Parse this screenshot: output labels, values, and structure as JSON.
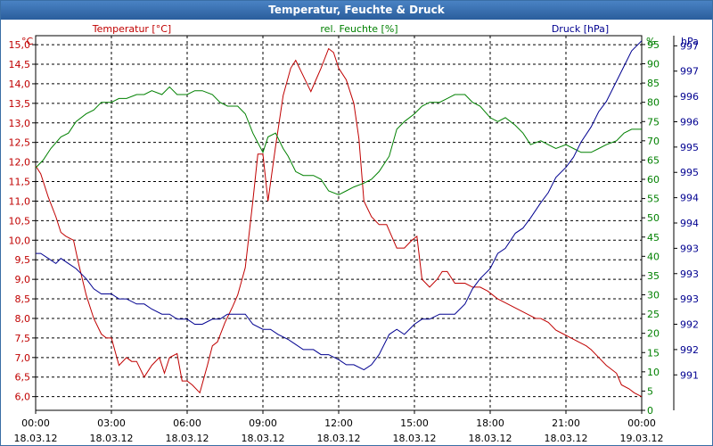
{
  "window": {
    "title": "Temperatur, Feuchte & Druck"
  },
  "chart_data": {
    "type": "line",
    "title": "Temperatur, Feuchte & Druck",
    "grid": true,
    "x_ticks": [
      {
        "time": "00:00",
        "date": "18.03.12"
      },
      {
        "time": "03:00",
        "date": "18.03.12"
      },
      {
        "time": "06:00",
        "date": "18.03.12"
      },
      {
        "time": "09:00",
        "date": "18.03.12"
      },
      {
        "time": "12:00",
        "date": "18.03.12"
      },
      {
        "time": "15:00",
        "date": "18.03.12"
      },
      {
        "time": "18:00",
        "date": "18.03.12"
      },
      {
        "time": "21:00",
        "date": "18.03.12"
      },
      {
        "time": "00:00",
        "date": "19.03.12"
      }
    ],
    "x_range_hours": [
      0,
      24
    ],
    "axes": {
      "temperature": {
        "label": "Temperatur [°C]",
        "unit": "°C",
        "color": "#c00000",
        "ylim": [
          5.65,
          15.23
        ],
        "ticks": [
          "6,0",
          "6,5",
          "7,0",
          "7,5",
          "8,0",
          "8,5",
          "9,0",
          "9,5",
          "10,0",
          "10,5",
          "11,0",
          "11,5",
          "12,0",
          "12,5",
          "13,0",
          "13,5",
          "14,0",
          "14,5",
          "15,0"
        ]
      },
      "humidity": {
        "label": "rel. Feuchte [%]",
        "unit": "%",
        "color": "#008000",
        "ylim": [
          0,
          97.3
        ],
        "ticks": [
          "0",
          "5",
          "10",
          "15",
          "20",
          "25",
          "30",
          "35",
          "40",
          "45",
          "50",
          "55",
          "60",
          "65",
          "70",
          "75",
          "80",
          "85",
          "90",
          "95"
        ]
      },
      "pressure": {
        "label": "Druck [hPa]",
        "unit": "hPa",
        "color": "#000090",
        "ylim": [
          990.3,
          997.7
        ],
        "ticks": [
          "991",
          "992",
          "992",
          "993",
          "993",
          "993",
          "994",
          "994",
          "995",
          "995",
          "996",
          "996",
          "997",
          "997"
        ],
        "tick_values": [
          991,
          991.5,
          992,
          992.5,
          993,
          993.5,
          994,
          994.5,
          995,
          995.5,
          996,
          996.5,
          997,
          997.5
        ]
      }
    },
    "series": [
      {
        "name": "Temperatur [°C]",
        "axis": "temperature",
        "color": "#c00000",
        "x": [
          0,
          0.2,
          0.5,
          0.8,
          1.0,
          1.2,
          1.5,
          1.7,
          2.0,
          2.3,
          2.6,
          2.8,
          3.0,
          3.3,
          3.6,
          3.8,
          4.0,
          4.3,
          4.6,
          4.9,
          5.1,
          5.3,
          5.6,
          5.8,
          6.0,
          6.2,
          6.5,
          6.8,
          7.0,
          7.2,
          7.5,
          7.8,
          8.0,
          8.3,
          8.6,
          8.8,
          9.0,
          9.2,
          9.5,
          9.8,
          10.1,
          10.3,
          10.6,
          10.9,
          11.1,
          11.3,
          11.6,
          11.8,
          12.0,
          12.3,
          12.6,
          12.8,
          13.0,
          13.3,
          13.6,
          13.9,
          14.1,
          14.3,
          14.6,
          14.9,
          15.1,
          15.3,
          15.6,
          15.9,
          16.1,
          16.3,
          16.6,
          16.8,
          17.0,
          17.3,
          17.6,
          17.9,
          18.1,
          18.3,
          18.6,
          18.9,
          19.2,
          19.5,
          19.8,
          20.0,
          20.3,
          20.6,
          20.9,
          21.2,
          21.5,
          21.8,
          22.0,
          22.3,
          22.6,
          22.8,
          23.0,
          23.2,
          23.5,
          23.7,
          24.0
        ],
        "values": [
          11.9,
          11.7,
          11.1,
          10.6,
          10.2,
          10.1,
          10.0,
          9.4,
          8.6,
          8.0,
          7.6,
          7.5,
          7.5,
          6.8,
          7.0,
          6.9,
          6.9,
          6.5,
          6.8,
          7.0,
          6.6,
          7.0,
          7.1,
          6.4,
          6.4,
          6.3,
          6.1,
          6.8,
          7.3,
          7.4,
          7.9,
          8.3,
          8.6,
          9.3,
          11.0,
          12.2,
          12.2,
          11.0,
          12.4,
          13.7,
          14.4,
          14.6,
          14.2,
          13.8,
          14.1,
          14.4,
          14.9,
          14.8,
          14.4,
          14.1,
          13.5,
          12.6,
          11.0,
          10.6,
          10.4,
          10.4,
          10.1,
          9.8,
          9.8,
          10.0,
          10.1,
          9.0,
          8.8,
          9.0,
          9.2,
          9.2,
          8.9,
          8.9,
          8.9,
          8.8,
          8.8,
          8.7,
          8.6,
          8.5,
          8.4,
          8.3,
          8.2,
          8.1,
          8.0,
          8.0,
          7.9,
          7.7,
          7.6,
          7.5,
          7.4,
          7.3,
          7.2,
          7.0,
          6.8,
          6.7,
          6.6,
          6.3,
          6.2,
          6.1,
          6.0
        ]
      },
      {
        "name": "rel. Feuchte [%]",
        "axis": "humidity",
        "color": "#008000",
        "x": [
          0,
          0.3,
          0.6,
          1.0,
          1.3,
          1.6,
          2.0,
          2.3,
          2.6,
          3.0,
          3.3,
          3.6,
          4.0,
          4.3,
          4.6,
          5.0,
          5.3,
          5.6,
          6.0,
          6.3,
          6.6,
          7.0,
          7.3,
          7.6,
          8.0,
          8.3,
          8.6,
          9.0,
          9.2,
          9.5,
          9.8,
          10.0,
          10.3,
          10.6,
          11.0,
          11.3,
          11.6,
          12.0,
          12.3,
          12.6,
          13.0,
          13.3,
          13.6,
          14.0,
          14.3,
          14.6,
          15.0,
          15.3,
          15.6,
          16.0,
          16.3,
          16.6,
          17.0,
          17.3,
          17.6,
          18.0,
          18.3,
          18.6,
          19.0,
          19.3,
          19.6,
          20.0,
          20.3,
          20.6,
          21.0,
          21.3,
          21.6,
          22.0,
          22.3,
          22.6,
          23.0,
          23.3,
          23.6,
          24.0
        ],
        "values": [
          63,
          65,
          68,
          71,
          72,
          75,
          77,
          78,
          80,
          80,
          81,
          81,
          82,
          82,
          83,
          82,
          84,
          82,
          82,
          83,
          83,
          82,
          80,
          79,
          79,
          77,
          72,
          67,
          71,
          72,
          68,
          66,
          62,
          61,
          61,
          60,
          57,
          56,
          57,
          58,
          59,
          60,
          62,
          66,
          73,
          75,
          77,
          79,
          80,
          80,
          81,
          82,
          82,
          80,
          79,
          76,
          75,
          76,
          74,
          72,
          69,
          70,
          69,
          68,
          69,
          68,
          67,
          67,
          68,
          69,
          70,
          72,
          73,
          73
        ]
      },
      {
        "name": "Druck [hPa]",
        "axis": "pressure",
        "color": "#000090",
        "x": [
          0,
          0.2,
          0.5,
          0.8,
          1.0,
          1.3,
          1.6,
          2.0,
          2.3,
          2.6,
          3.0,
          3.3,
          3.6,
          4.0,
          4.3,
          4.6,
          5.0,
          5.3,
          5.6,
          6.0,
          6.3,
          6.6,
          7.0,
          7.3,
          7.6,
          8.0,
          8.3,
          8.6,
          9.0,
          9.3,
          9.6,
          10.0,
          10.3,
          10.6,
          11.0,
          11.3,
          11.6,
          12.0,
          12.3,
          12.6,
          13.0,
          13.3,
          13.6,
          14.0,
          14.3,
          14.6,
          15.0,
          15.3,
          15.6,
          16.0,
          16.3,
          16.6,
          17.0,
          17.3,
          17.6,
          18.0,
          18.3,
          18.6,
          19.0,
          19.3,
          19.6,
          20.0,
          20.3,
          20.6,
          21.0,
          21.3,
          21.6,
          22.0,
          22.3,
          22.6,
          23.0,
          23.3,
          23.6,
          24.0
        ],
        "values": [
          993.4,
          993.4,
          993.3,
          993.2,
          993.3,
          993.2,
          993.1,
          992.9,
          992.7,
          992.6,
          992.6,
          992.5,
          992.5,
          992.4,
          992.4,
          992.3,
          992.2,
          992.2,
          992.1,
          992.1,
          992.0,
          992.0,
          992.1,
          992.1,
          992.2,
          992.2,
          992.2,
          992.0,
          991.9,
          991.9,
          991.8,
          991.7,
          991.6,
          991.5,
          991.5,
          991.4,
          991.4,
          991.3,
          991.2,
          991.2,
          991.1,
          991.2,
          991.4,
          991.8,
          991.9,
          991.8,
          992.0,
          992.1,
          992.1,
          992.2,
          992.2,
          992.2,
          992.4,
          992.7,
          992.9,
          993.1,
          993.4,
          993.5,
          993.8,
          993.9,
          994.1,
          994.4,
          994.6,
          994.9,
          995.1,
          995.3,
          995.6,
          995.9,
          996.2,
          996.4,
          996.8,
          997.1,
          997.4,
          997.6
        ]
      }
    ]
  }
}
